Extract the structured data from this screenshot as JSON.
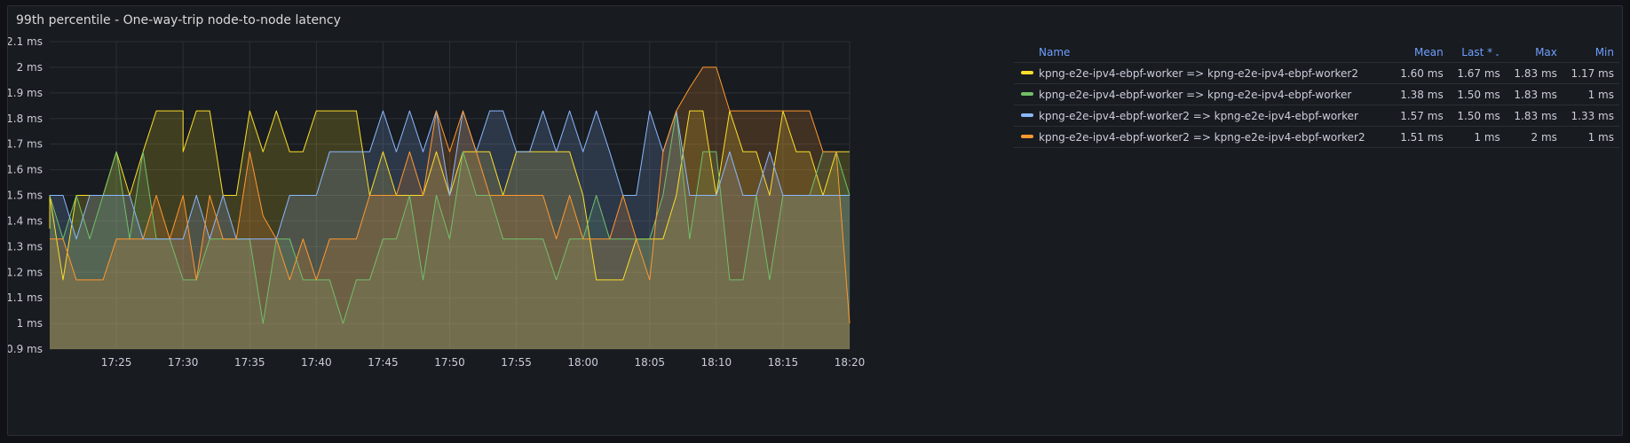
{
  "panel": {
    "title": "99th percentile - One-way-trip node-to-node latency"
  },
  "legend": {
    "headers": {
      "name": "Name",
      "mean": "Mean",
      "last": "Last *",
      "max": "Max",
      "min": "Min"
    },
    "sort_icon": "chevron-down-icon",
    "rows": [
      {
        "name": "kpng-e2e-ipv4-ebpf-worker => kpng-e2e-ipv4-ebpf-worker2",
        "color": "#fade2a",
        "mean": "1.60 ms",
        "last": "1.67 ms",
        "max": "1.83 ms",
        "min": "1.17 ms"
      },
      {
        "name": "kpng-e2e-ipv4-ebpf-worker => kpng-e2e-ipv4-ebpf-worker",
        "color": "#73bf69",
        "mean": "1.38 ms",
        "last": "1.50 ms",
        "max": "1.83 ms",
        "min": "1 ms"
      },
      {
        "name": "kpng-e2e-ipv4-ebpf-worker2 => kpng-e2e-ipv4-ebpf-worker",
        "color": "#8ab8ff",
        "mean": "1.57 ms",
        "last": "1.50 ms",
        "max": "1.83 ms",
        "min": "1.33 ms"
      },
      {
        "name": "kpng-e2e-ipv4-ebpf-worker2 => kpng-e2e-ipv4-ebpf-worker2",
        "color": "#ff9830",
        "mean": "1.51 ms",
        "last": "1 ms",
        "max": "2 ms",
        "min": "1 ms"
      }
    ]
  },
  "chart_data": {
    "type": "area",
    "title": "99th percentile - One-way-trip node-to-node latency",
    "xlabel": "",
    "ylabel": "",
    "ylim": [
      0.9,
      2.1
    ],
    "y_ticks": [
      {
        "v": 2.1,
        "label": "2.1 ms"
      },
      {
        "v": 2.0,
        "label": "2 ms"
      },
      {
        "v": 1.9,
        "label": "1.9 ms"
      },
      {
        "v": 1.8,
        "label": "1.8 ms"
      },
      {
        "v": 1.7,
        "label": "1.7 ms"
      },
      {
        "v": 1.6,
        "label": "1.6 ms"
      },
      {
        "v": 1.5,
        "label": "1.5 ms"
      },
      {
        "v": 1.4,
        "label": "1.4 ms"
      },
      {
        "v": 1.3,
        "label": "1.3 ms"
      },
      {
        "v": 1.2,
        "label": "1.2 ms"
      },
      {
        "v": 1.1,
        "label": "1.1 ms"
      },
      {
        "v": 1.0,
        "label": "1 ms"
      },
      {
        "v": 0.9,
        "label": "0.9 ms"
      }
    ],
    "xlim": [
      "17:20",
      "18:20"
    ],
    "x_ticks": [
      "17:25",
      "17:30",
      "17:35",
      "17:40",
      "17:45",
      "17:50",
      "17:55",
      "18:00",
      "18:05",
      "18:10",
      "18:15",
      "18:20"
    ],
    "grid": true,
    "legend_position": "right",
    "series": [
      {
        "name": "kpng-e2e-ipv4-ebpf-worker => kpng-e2e-ipv4-ebpf-worker2",
        "color": "#fade2a",
        "points": [
          [
            "17:20",
            1.37
          ],
          [
            "17:20",
            1.5
          ],
          [
            "17:21",
            1.17
          ],
          [
            "17:22",
            1.5
          ],
          [
            "17:23",
            1.5
          ],
          [
            "17:24",
            1.5
          ],
          [
            "17:25",
            1.67
          ],
          [
            "17:26",
            1.5
          ],
          [
            "17:27",
            1.67
          ],
          [
            "17:28",
            1.83
          ],
          [
            "17:29",
            1.83
          ],
          [
            "17:30",
            1.83
          ],
          [
            "17:30",
            1.67
          ],
          [
            "17:31",
            1.83
          ],
          [
            "17:32",
            1.83
          ],
          [
            "17:33",
            1.5
          ],
          [
            "17:34",
            1.5
          ],
          [
            "17:35",
            1.83
          ],
          [
            "17:36",
            1.67
          ],
          [
            "17:37",
            1.83
          ],
          [
            "17:38",
            1.67
          ],
          [
            "17:39",
            1.67
          ],
          [
            "17:40",
            1.83
          ],
          [
            "17:41",
            1.83
          ],
          [
            "17:42",
            1.83
          ],
          [
            "17:43",
            1.83
          ],
          [
            "17:44",
            1.5
          ],
          [
            "17:45",
            1.67
          ],
          [
            "17:46",
            1.5
          ],
          [
            "17:47",
            1.5
          ],
          [
            "17:48",
            1.5
          ],
          [
            "17:49",
            1.67
          ],
          [
            "17:50",
            1.5
          ],
          [
            "17:51",
            1.67
          ],
          [
            "17:52",
            1.67
          ],
          [
            "17:53",
            1.67
          ],
          [
            "17:54",
            1.5
          ],
          [
            "17:55",
            1.67
          ],
          [
            "17:56",
            1.67
          ],
          [
            "17:57",
            1.67
          ],
          [
            "17:58",
            1.67
          ],
          [
            "17:59",
            1.67
          ],
          [
            "18:00",
            1.5
          ],
          [
            "18:01",
            1.17
          ],
          [
            "18:02",
            1.17
          ],
          [
            "18:03",
            1.17
          ],
          [
            "18:04",
            1.33
          ],
          [
            "18:05",
            1.33
          ],
          [
            "18:06",
            1.33
          ],
          [
            "18:07",
            1.5
          ],
          [
            "18:08",
            1.83
          ],
          [
            "18:09",
            1.83
          ],
          [
            "18:10",
            1.5
          ],
          [
            "18:11",
            1.83
          ],
          [
            "18:12",
            1.67
          ],
          [
            "18:13",
            1.67
          ],
          [
            "18:14",
            1.5
          ],
          [
            "18:15",
            1.83
          ],
          [
            "18:16",
            1.67
          ],
          [
            "18:17",
            1.67
          ],
          [
            "18:18",
            1.5
          ],
          [
            "18:19",
            1.67
          ],
          [
            "18:20",
            1.67
          ]
        ]
      },
      {
        "name": "kpng-e2e-ipv4-ebpf-worker => kpng-e2e-ipv4-ebpf-worker",
        "color": "#73bf69",
        "points": [
          [
            "17:20",
            1.5
          ],
          [
            "17:21",
            1.33
          ],
          [
            "17:22",
            1.5
          ],
          [
            "17:23",
            1.33
          ],
          [
            "17:24",
            1.5
          ],
          [
            "17:25",
            1.67
          ],
          [
            "17:26",
            1.33
          ],
          [
            "17:27",
            1.67
          ],
          [
            "17:28",
            1.33
          ],
          [
            "17:29",
            1.33
          ],
          [
            "17:30",
            1.17
          ],
          [
            "17:31",
            1.17
          ],
          [
            "17:32",
            1.33
          ],
          [
            "17:33",
            1.33
          ],
          [
            "17:34",
            1.33
          ],
          [
            "17:35",
            1.33
          ],
          [
            "17:36",
            1.0
          ],
          [
            "17:37",
            1.33
          ],
          [
            "17:38",
            1.33
          ],
          [
            "17:39",
            1.17
          ],
          [
            "17:40",
            1.17
          ],
          [
            "17:41",
            1.17
          ],
          [
            "17:42",
            1.0
          ],
          [
            "17:43",
            1.17
          ],
          [
            "17:44",
            1.17
          ],
          [
            "17:45",
            1.33
          ],
          [
            "17:46",
            1.33
          ],
          [
            "17:47",
            1.5
          ],
          [
            "17:48",
            1.17
          ],
          [
            "17:49",
            1.5
          ],
          [
            "17:50",
            1.33
          ],
          [
            "17:51",
            1.67
          ],
          [
            "17:52",
            1.5
          ],
          [
            "17:53",
            1.5
          ],
          [
            "17:54",
            1.33
          ],
          [
            "17:55",
            1.33
          ],
          [
            "17:56",
            1.33
          ],
          [
            "17:57",
            1.33
          ],
          [
            "17:58",
            1.17
          ],
          [
            "17:59",
            1.33
          ],
          [
            "18:00",
            1.33
          ],
          [
            "18:01",
            1.5
          ],
          [
            "18:02",
            1.33
          ],
          [
            "18:03",
            1.33
          ],
          [
            "18:04",
            1.33
          ],
          [
            "18:05",
            1.33
          ],
          [
            "18:06",
            1.5
          ],
          [
            "18:07",
            1.83
          ],
          [
            "18:08",
            1.33
          ],
          [
            "18:09",
            1.67
          ],
          [
            "18:10",
            1.67
          ],
          [
            "18:11",
            1.17
          ],
          [
            "18:12",
            1.17
          ],
          [
            "18:13",
            1.5
          ],
          [
            "18:14",
            1.17
          ],
          [
            "18:15",
            1.5
          ],
          [
            "18:16",
            1.5
          ],
          [
            "18:17",
            1.5
          ],
          [
            "18:18",
            1.67
          ],
          [
            "18:19",
            1.67
          ],
          [
            "18:20",
            1.5
          ]
        ]
      },
      {
        "name": "kpng-e2e-ipv4-ebpf-worker2 => kpng-e2e-ipv4-ebpf-worker",
        "color": "#8ab8ff",
        "points": [
          [
            "17:20",
            1.5
          ],
          [
            "17:21",
            1.5
          ],
          [
            "17:22",
            1.33
          ],
          [
            "17:23",
            1.5
          ],
          [
            "17:24",
            1.5
          ],
          [
            "17:25",
            1.5
          ],
          [
            "17:26",
            1.5
          ],
          [
            "17:27",
            1.33
          ],
          [
            "17:28",
            1.33
          ],
          [
            "17:29",
            1.33
          ],
          [
            "17:30",
            1.33
          ],
          [
            "17:31",
            1.5
          ],
          [
            "17:32",
            1.33
          ],
          [
            "17:33",
            1.5
          ],
          [
            "17:34",
            1.33
          ],
          [
            "17:35",
            1.33
          ],
          [
            "17:36",
            1.33
          ],
          [
            "17:37",
            1.33
          ],
          [
            "17:38",
            1.5
          ],
          [
            "17:39",
            1.5
          ],
          [
            "17:40",
            1.5
          ],
          [
            "17:41",
            1.67
          ],
          [
            "17:42",
            1.67
          ],
          [
            "17:43",
            1.67
          ],
          [
            "17:44",
            1.67
          ],
          [
            "17:45",
            1.83
          ],
          [
            "17:46",
            1.67
          ],
          [
            "17:47",
            1.83
          ],
          [
            "17:48",
            1.67
          ],
          [
            "17:49",
            1.83
          ],
          [
            "17:50",
            1.5
          ],
          [
            "17:51",
            1.83
          ],
          [
            "17:52",
            1.67
          ],
          [
            "17:53",
            1.83
          ],
          [
            "17:54",
            1.83
          ],
          [
            "17:55",
            1.67
          ],
          [
            "17:56",
            1.67
          ],
          [
            "17:57",
            1.83
          ],
          [
            "17:58",
            1.67
          ],
          [
            "17:59",
            1.83
          ],
          [
            "18:00",
            1.67
          ],
          [
            "18:01",
            1.83
          ],
          [
            "18:02",
            1.67
          ],
          [
            "18:03",
            1.5
          ],
          [
            "18:04",
            1.5
          ],
          [
            "18:05",
            1.83
          ],
          [
            "18:06",
            1.67
          ],
          [
            "18:07",
            1.83
          ],
          [
            "18:08",
            1.5
          ],
          [
            "18:09",
            1.5
          ],
          [
            "18:10",
            1.5
          ],
          [
            "18:11",
            1.67
          ],
          [
            "18:12",
            1.5
          ],
          [
            "18:13",
            1.5
          ],
          [
            "18:14",
            1.67
          ],
          [
            "18:15",
            1.5
          ],
          [
            "18:16",
            1.5
          ],
          [
            "18:17",
            1.5
          ],
          [
            "18:18",
            1.5
          ],
          [
            "18:19",
            1.5
          ],
          [
            "18:20",
            1.5
          ]
        ]
      },
      {
        "name": "kpng-e2e-ipv4-ebpf-worker2 => kpng-e2e-ipv4-ebpf-worker2",
        "color": "#ff9830",
        "points": [
          [
            "17:20",
            1.33
          ],
          [
            "17:21",
            1.33
          ],
          [
            "17:22",
            1.17
          ],
          [
            "17:23",
            1.17
          ],
          [
            "17:24",
            1.17
          ],
          [
            "17:25",
            1.33
          ],
          [
            "17:26",
            1.33
          ],
          [
            "17:27",
            1.33
          ],
          [
            "17:28",
            1.5
          ],
          [
            "17:29",
            1.33
          ],
          [
            "17:30",
            1.5
          ],
          [
            "17:31",
            1.17
          ],
          [
            "17:32",
            1.5
          ],
          [
            "17:33",
            1.33
          ],
          [
            "17:34",
            1.33
          ],
          [
            "17:35",
            1.67
          ],
          [
            "17:36",
            1.42
          ],
          [
            "17:37",
            1.33
          ],
          [
            "17:38",
            1.17
          ],
          [
            "17:39",
            1.33
          ],
          [
            "17:40",
            1.17
          ],
          [
            "17:41",
            1.33
          ],
          [
            "17:42",
            1.33
          ],
          [
            "17:43",
            1.33
          ],
          [
            "17:44",
            1.5
          ],
          [
            "17:45",
            1.5
          ],
          [
            "17:46",
            1.5
          ],
          [
            "17:47",
            1.67
          ],
          [
            "17:48",
            1.5
          ],
          [
            "17:49",
            1.83
          ],
          [
            "17:50",
            1.67
          ],
          [
            "17:51",
            1.83
          ],
          [
            "17:52",
            1.67
          ],
          [
            "17:53",
            1.5
          ],
          [
            "17:54",
            1.5
          ],
          [
            "17:55",
            1.5
          ],
          [
            "17:56",
            1.5
          ],
          [
            "17:57",
            1.5
          ],
          [
            "17:58",
            1.33
          ],
          [
            "17:59",
            1.5
          ],
          [
            "18:00",
            1.33
          ],
          [
            "18:01",
            1.33
          ],
          [
            "18:02",
            1.33
          ],
          [
            "18:03",
            1.5
          ],
          [
            "18:04",
            1.33
          ],
          [
            "18:05",
            1.17
          ],
          [
            "18:06",
            1.67
          ],
          [
            "18:07",
            1.83
          ],
          [
            "18:08",
            1.92
          ],
          [
            "18:09",
            2.0
          ],
          [
            "18:10",
            2.0
          ],
          [
            "18:11",
            1.83
          ],
          [
            "18:12",
            1.83
          ],
          [
            "18:13",
            1.83
          ],
          [
            "18:14",
            1.83
          ],
          [
            "18:15",
            1.83
          ],
          [
            "18:16",
            1.83
          ],
          [
            "18:17",
            1.83
          ],
          [
            "18:18",
            1.67
          ],
          [
            "18:19",
            1.67
          ],
          [
            "18:20",
            1.0
          ]
        ]
      }
    ]
  }
}
